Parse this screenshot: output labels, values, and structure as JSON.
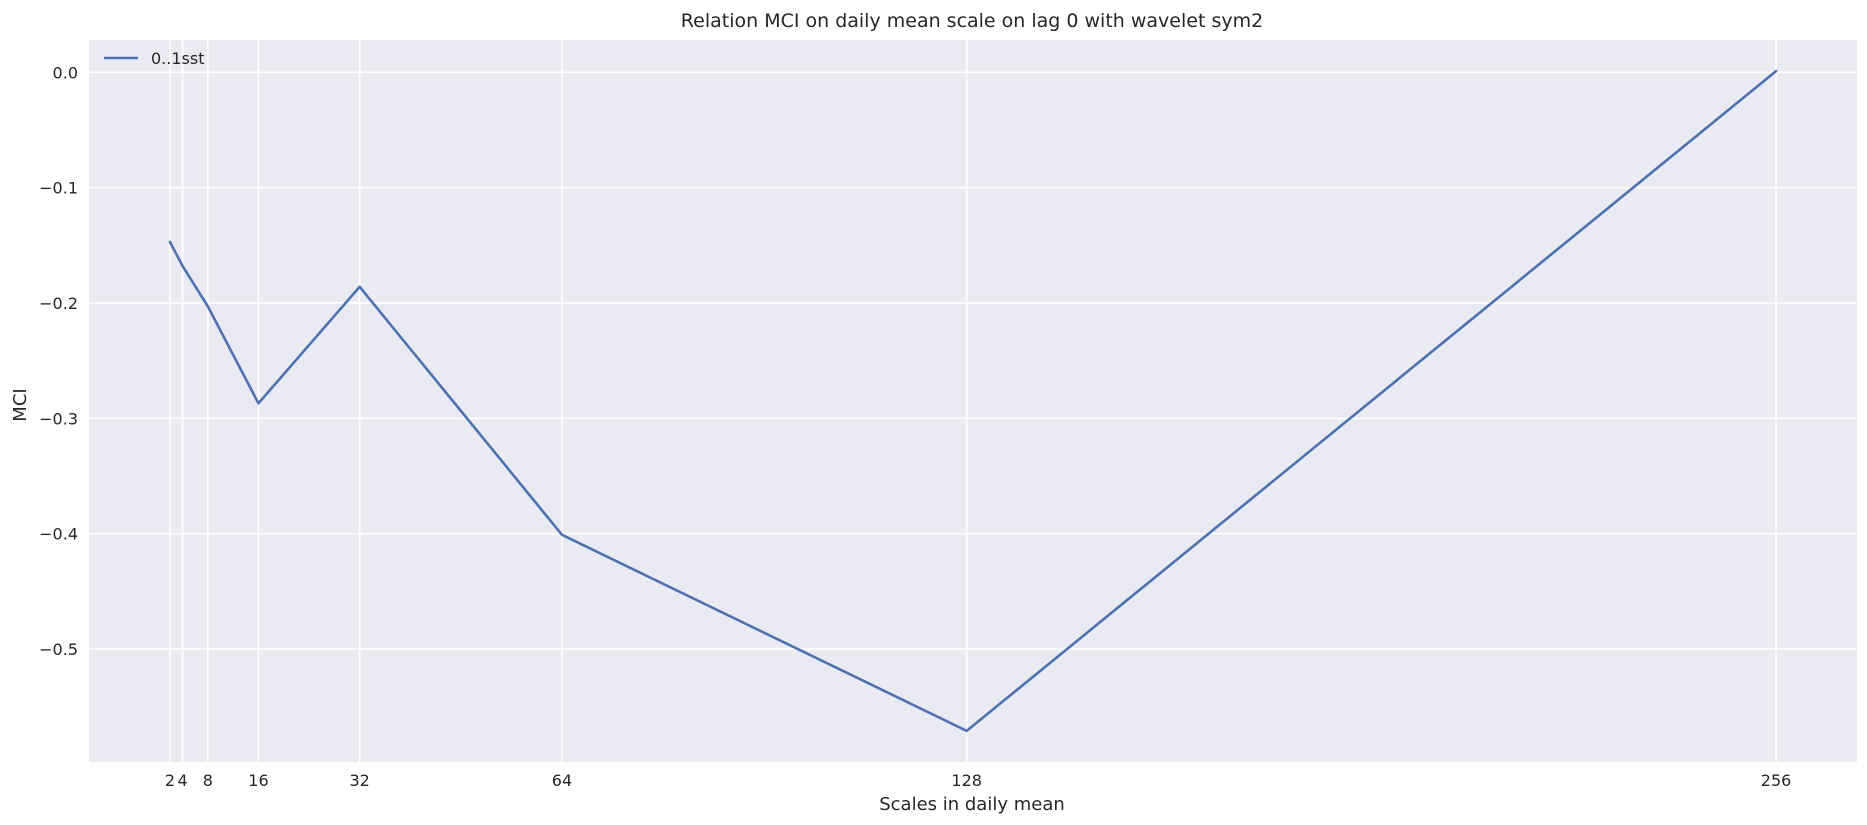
{
  "chart_data": {
    "type": "line",
    "title": "Relation MCI on daily mean scale on lag 0 with wavelet sym2",
    "xlabel": "Scales in daily mean",
    "ylabel": "MCI",
    "x_ticks": [
      2,
      4,
      8,
      16,
      32,
      64,
      128,
      256
    ],
    "y_ticks": [
      0.0,
      -0.1,
      -0.2,
      -0.3,
      -0.4,
      -0.5
    ],
    "y_tick_labels": [
      "0.0",
      "−0.1",
      "−0.2",
      "−0.3",
      "−0.4",
      "−0.5"
    ],
    "xlim": [
      -10.8,
      268.8
    ],
    "ylim": [
      -0.598,
      0.028
    ],
    "grid": true,
    "background_color": "#eaeaf2",
    "grid_color": "#ffffff",
    "legend_position": "top-left",
    "series": [
      {
        "name": "0..1sst",
        "color": "#4c72b0",
        "x": [
          2,
          4,
          8,
          16,
          32,
          64,
          128,
          256
        ],
        "values": [
          -0.147,
          -0.168,
          -0.203,
          -0.287,
          -0.186,
          -0.401,
          -0.571,
          0.001
        ]
      }
    ]
  }
}
